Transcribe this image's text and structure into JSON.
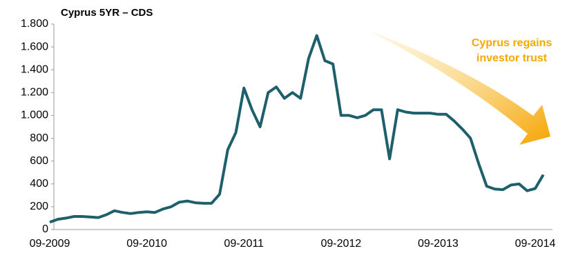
{
  "chart_data": {
    "type": "line",
    "title": "Cyprus 5YR – CDS",
    "annotation": [
      "Cyprus regains",
      "investor trust"
    ],
    "annotation_color": "#f5a800",
    "x": [
      "09-2009",
      "10-2009",
      "11-2009",
      "12-2009",
      "01-2010",
      "02-2010",
      "03-2010",
      "04-2010",
      "05-2010",
      "06-2010",
      "07-2010",
      "08-2010",
      "09-2010",
      "10-2010",
      "11-2010",
      "12-2010",
      "01-2011",
      "02-2011",
      "03-2011",
      "04-2011",
      "05-2011",
      "06-2011",
      "07-2011",
      "08-2011",
      "09-2011",
      "10-2011",
      "11-2011",
      "12-2011",
      "01-2012",
      "02-2012",
      "03-2012",
      "04-2012",
      "05-2012",
      "06-2012",
      "07-2012",
      "08-2012",
      "09-2012",
      "10-2012",
      "11-2012",
      "12-2012",
      "01-2013",
      "02-2013",
      "03-2013",
      "04-2013",
      "05-2013",
      "06-2013",
      "07-2013",
      "08-2013",
      "09-2013",
      "10-2013",
      "11-2013",
      "12-2013",
      "01-2014",
      "02-2014",
      "03-2014",
      "04-2014",
      "05-2014",
      "06-2014",
      "07-2014",
      "08-2014",
      "09-2014",
      "10-2014"
    ],
    "series": [
      {
        "name": "Cyprus 5YR CDS",
        "color": "#1d5f6a",
        "values": [
          65,
          90,
          100,
          115,
          115,
          110,
          105,
          130,
          165,
          150,
          140,
          150,
          155,
          150,
          180,
          200,
          240,
          250,
          235,
          230,
          230,
          310,
          700,
          850,
          1240,
          1050,
          900,
          1200,
          1250,
          1150,
          1200,
          1150,
          1500,
          1700,
          1480,
          1450,
          1000,
          1000,
          980,
          1000,
          1050,
          1050,
          620,
          1050,
          1030,
          1020,
          1020,
          1020,
          1010,
          1010,
          950,
          880,
          800,
          580,
          380,
          355,
          350,
          390,
          400,
          340,
          360,
          480
        ]
      }
    ],
    "xticks": [
      "09-2009",
      "09-2010",
      "09-2011",
      "09-2012",
      "09-2013",
      "09-2014"
    ],
    "ylim": [
      0,
      1800
    ],
    "yticks": [
      0,
      200,
      400,
      600,
      800,
      {
        "value": 1000,
        "label": "1.000"
      },
      {
        "value": 1200,
        "label": "1.200"
      },
      {
        "value": 1400,
        "label": "1.400"
      },
      {
        "value": 1600,
        "label": "1.600"
      },
      {
        "value": 1800,
        "label": "1.800"
      }
    ],
    "grid": false
  }
}
